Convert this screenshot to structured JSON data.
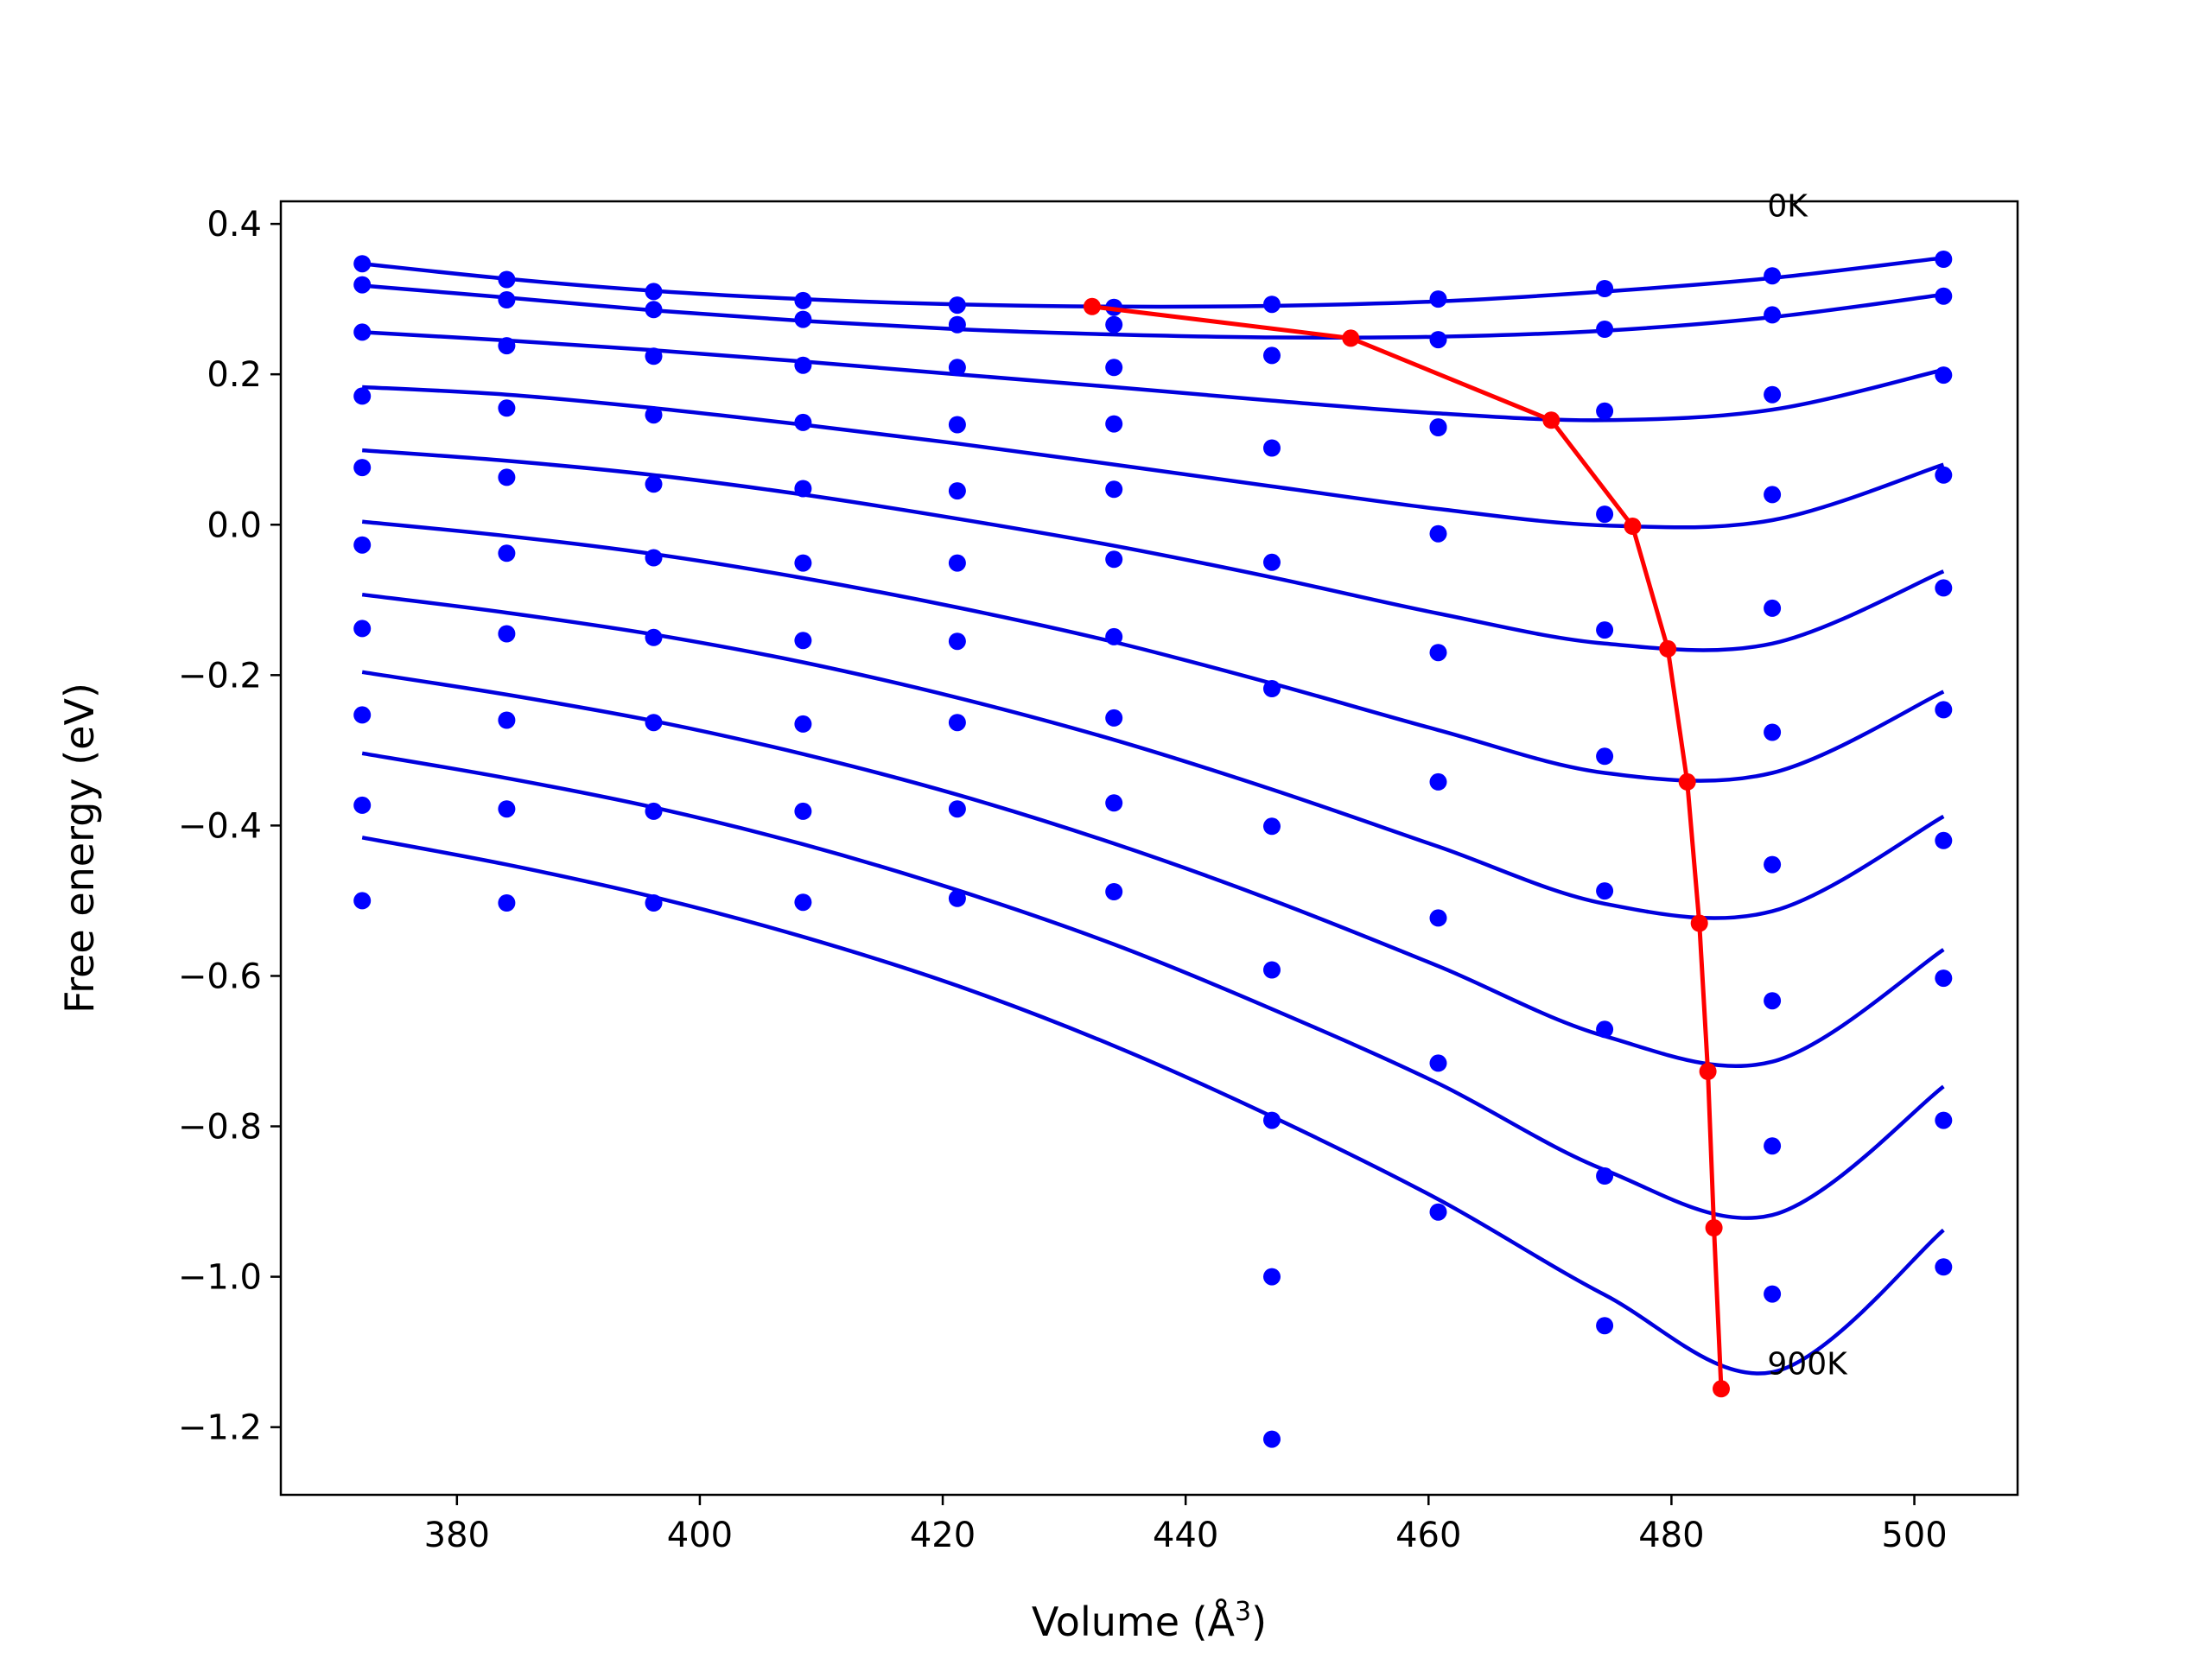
{
  "chart_data": {
    "type": "line",
    "title": "",
    "xlabel": "Volume (Å",
    "xlabel_sup": "3",
    "xlabel_end": ")",
    "ylabel": "Free energy (eV)",
    "xlim": [
      365.5,
      508.5
    ],
    "ylim": [
      -1.29,
      0.43
    ],
    "xticks": [
      380,
      400,
      420,
      440,
      460,
      480,
      500
    ],
    "xtick_labels": [
      "380",
      "400",
      "420",
      "440",
      "460",
      "480",
      "500"
    ],
    "yticks": [
      0.4,
      0.2,
      0.0,
      -0.2,
      -0.4,
      -0.6,
      -0.8,
      -1.0,
      -1.2
    ],
    "ytick_labels": [
      "0.4",
      "0.2",
      "0.0",
      "−0.2",
      "−0.4",
      "−0.6",
      "−0.8",
      "−1.0",
      "−1.2"
    ],
    "grid": false,
    "annotations": [
      {
        "text": "0K",
        "x": 487.9,
        "y": 0.41
      },
      {
        "text": "900K",
        "x": 487.9,
        "y": -1.13
      }
    ],
    "volumes": [
      372.2,
      384.1,
      396.2,
      408.5,
      421.2,
      434.1,
      447.1,
      460.8,
      474.5,
      488.3,
      502.4
    ],
    "colors": {
      "curves": "#0000dd",
      "points": "#0000ff",
      "minimum_path": "#ff0000"
    },
    "series": [
      {
        "points": [
          0.347,
          0.326,
          0.31,
          0.298,
          0.292,
          0.289,
          0.293,
          0.3,
          0.314,
          0.331,
          0.353
        ],
        "curve": [
          [
            372.2,
            0.347
          ],
          [
            384.1,
            0.327
          ],
          [
            396.2,
            0.311
          ],
          [
            408.5,
            0.3
          ],
          [
            421.2,
            0.293
          ],
          [
            434.1,
            0.29
          ],
          [
            447.1,
            0.291
          ],
          [
            460.8,
            0.297
          ],
          [
            474.5,
            0.31
          ],
          [
            488.3,
            0.328
          ],
          [
            502.4,
            0.355
          ]
        ]
      },
      {
        "points": [
          0.319,
          0.299,
          0.286,
          0.273,
          0.266,
          0.266,
          0.225,
          0.246,
          0.26,
          0.279,
          0.304
        ],
        "curve": [
          [
            372.2,
            0.318
          ],
          [
            384.1,
            0.302
          ],
          [
            396.2,
            0.285
          ],
          [
            408.5,
            0.271
          ],
          [
            421.2,
            0.26
          ],
          [
            434.1,
            0.253
          ],
          [
            447.1,
            0.249
          ],
          [
            460.8,
            0.25
          ],
          [
            474.5,
            0.258
          ],
          [
            488.3,
            0.276
          ],
          [
            502.4,
            0.306
          ]
        ]
      },
      {
        "points": [
          0.256,
          0.238,
          0.224,
          0.212,
          0.209,
          0.209,
          0.102,
          0.13,
          0.151,
          0.173,
          0.199
        ],
        "curve": [
          [
            372.2,
            0.256
          ],
          [
            384.1,
            0.245
          ],
          [
            396.2,
            0.232
          ],
          [
            408.5,
            0.217
          ],
          [
            421.2,
            0.2
          ],
          [
            434.1,
            0.183
          ],
          [
            447.1,
            0.165
          ],
          [
            460.8,
            0.148
          ],
          [
            474.5,
            0.139
          ],
          [
            488.3,
            0.153
          ],
          [
            502.4,
            0.206
          ]
        ]
      },
      {
        "points": [
          0.171,
          0.155,
          0.146,
          0.136,
          0.133,
          0.134,
          -0.05,
          0.129,
          0.014,
          0.04,
          0.066
        ],
        "curve": [
          [
            372.2,
            0.183
          ],
          [
            384.1,
            0.173
          ],
          [
            396.2,
            0.155
          ],
          [
            408.5,
            0.133
          ],
          [
            421.2,
            0.108
          ],
          [
            434.1,
            0.08
          ],
          [
            447.1,
            0.051
          ],
          [
            460.8,
            0.021
          ],
          [
            474.5,
            -0.001
          ],
          [
            488.3,
            0.006
          ],
          [
            502.4,
            0.08
          ]
        ]
      },
      {
        "points": [
          0.076,
          0.063,
          0.054,
          0.048,
          0.045,
          0.047,
          -0.218,
          -0.012,
          -0.14,
          -0.111,
          -0.084
        ],
        "curve": [
          [
            372.2,
            0.099
          ],
          [
            384.1,
            0.085
          ],
          [
            396.2,
            0.066
          ],
          [
            408.5,
            0.04
          ],
          [
            421.2,
            0.008
          ],
          [
            434.1,
            -0.028
          ],
          [
            447.1,
            -0.07
          ],
          [
            460.8,
            -0.118
          ],
          [
            474.5,
            -0.158
          ],
          [
            488.3,
            -0.158
          ],
          [
            502.4,
            -0.062
          ]
        ]
      },
      {
        "points": [
          -0.027,
          -0.038,
          -0.044,
          -0.051,
          -0.051,
          -0.046,
          -0.401,
          -0.17,
          -0.308,
          -0.276,
          -0.246
        ],
        "curve": [
          [
            372.2,
            0.004
          ],
          [
            384.1,
            -0.015
          ],
          [
            396.2,
            -0.039
          ],
          [
            408.5,
            -0.071
          ],
          [
            421.2,
            -0.11
          ],
          [
            434.1,
            -0.156
          ],
          [
            447.1,
            -0.211
          ],
          [
            460.8,
            -0.273
          ],
          [
            474.5,
            -0.33
          ],
          [
            488.3,
            -0.33
          ],
          [
            502.4,
            -0.222
          ]
        ]
      },
      {
        "points": [
          -0.138,
          -0.145,
          -0.15,
          -0.154,
          -0.155,
          -0.149,
          -0.592,
          -0.342,
          -0.487,
          -0.452,
          -0.42
        ],
        "curve": [
          [
            372.2,
            -0.093
          ],
          [
            384.1,
            -0.117
          ],
          [
            396.2,
            -0.146
          ],
          [
            408.5,
            -0.183
          ],
          [
            421.2,
            -0.23
          ],
          [
            434.1,
            -0.286
          ],
          [
            447.1,
            -0.352
          ],
          [
            460.8,
            -0.428
          ],
          [
            474.5,
            -0.504
          ],
          [
            488.3,
            -0.514
          ],
          [
            502.4,
            -0.388
          ]
        ]
      },
      {
        "points": [
          -0.253,
          -0.26,
          -0.263,
          -0.265,
          -0.263,
          -0.257,
          -0.792,
          -0.523,
          -0.671,
          -0.633,
          -0.603
        ],
        "curve": [
          [
            372.2,
            -0.196
          ],
          [
            384.1,
            -0.226
          ],
          [
            396.2,
            -0.261
          ],
          [
            408.5,
            -0.305
          ],
          [
            421.2,
            -0.359
          ],
          [
            434.1,
            -0.424
          ],
          [
            447.1,
            -0.499
          ],
          [
            460.8,
            -0.587
          ],
          [
            474.5,
            -0.68
          ],
          [
            488.3,
            -0.714
          ],
          [
            502.4,
            -0.565
          ]
        ]
      },
      {
        "points": [
          -0.373,
          -0.378,
          -0.381,
          -0.381,
          -0.378,
          -0.37,
          -1.0,
          -0.716,
          -0.866,
          -0.826,
          -0.792
        ],
        "curve": [
          [
            372.2,
            -0.304
          ],
          [
            384.1,
            -0.337
          ],
          [
            396.2,
            -0.376
          ],
          [
            408.5,
            -0.425
          ],
          [
            421.2,
            -0.486
          ],
          [
            434.1,
            -0.558
          ],
          [
            447.1,
            -0.644
          ],
          [
            460.8,
            -0.743
          ],
          [
            474.5,
            -0.858
          ],
          [
            488.3,
            -0.918
          ],
          [
            502.4,
            -0.747
          ]
        ]
      },
      {
        "points": [
          -0.5,
          -0.503,
          -0.503,
          -0.502,
          -0.497,
          -0.488,
          -1.216,
          -0.914,
          -1.065,
          -1.023,
          -0.987
        ],
        "curve": [
          [
            372.2,
            -0.416
          ],
          [
            384.1,
            -0.452
          ],
          [
            396.2,
            -0.495
          ],
          [
            408.5,
            -0.548
          ],
          [
            421.2,
            -0.613
          ],
          [
            434.1,
            -0.693
          ],
          [
            447.1,
            -0.787
          ],
          [
            460.8,
            -0.897
          ],
          [
            474.5,
            -1.024
          ],
          [
            488.3,
            -1.127
          ],
          [
            502.4,
            -0.938
          ]
        ]
      }
    ],
    "minimum_path": {
      "x": [
        432.3,
        453.6,
        470.1,
        476.8,
        479.7,
        481.3,
        482.3,
        483.0,
        483.5,
        484.1
      ],
      "y": [
        0.29,
        0.248,
        0.139,
        -0.002,
        -0.165,
        -0.342,
        -0.53,
        -0.727,
        -0.935,
        -1.149
      ]
    }
  }
}
